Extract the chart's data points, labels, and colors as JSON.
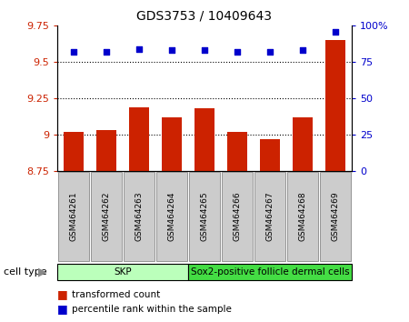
{
  "title": "GDS3753 / 10409643",
  "samples": [
    "GSM464261",
    "GSM464262",
    "GSM464263",
    "GSM464264",
    "GSM464265",
    "GSM464266",
    "GSM464267",
    "GSM464268",
    "GSM464269"
  ],
  "bar_values": [
    9.02,
    9.03,
    9.19,
    9.12,
    9.18,
    9.02,
    8.97,
    9.12,
    9.65
  ],
  "dot_values": [
    82,
    82,
    84,
    83,
    83,
    82,
    82,
    83,
    96
  ],
  "bar_base": 8.75,
  "ylim_left": [
    8.75,
    9.75
  ],
  "ylim_right": [
    0,
    100
  ],
  "yticks_left": [
    8.75,
    9.0,
    9.25,
    9.5,
    9.75
  ],
  "ytick_labels_left": [
    "8.75",
    "9",
    "9.25",
    "9.5",
    "9.75"
  ],
  "yticks_right": [
    0,
    25,
    50,
    75,
    100
  ],
  "ytick_labels_right": [
    "0",
    "25",
    "50",
    "75",
    "100%"
  ],
  "hlines": [
    9.0,
    9.25,
    9.5
  ],
  "bar_color": "#cc2200",
  "dot_color": "#0000cc",
  "skp_count": 4,
  "sox2_count": 5,
  "skp_label": "SKP",
  "sox2_label": "Sox2-positive follicle dermal cells",
  "skp_color": "#bbffbb",
  "sox2_color": "#44dd44",
  "legend_items": [
    {
      "color": "#cc2200",
      "label": "transformed count"
    },
    {
      "color": "#0000cc",
      "label": "percentile rank within the sample"
    }
  ],
  "cell_type_label": "cell type",
  "bar_width": 0.6,
  "background_color": "#ffffff",
  "tick_color_left": "#cc2200",
  "tick_color_right": "#0000cc",
  "sample_box_color": "#cccccc",
  "sample_box_edge": "#888888"
}
